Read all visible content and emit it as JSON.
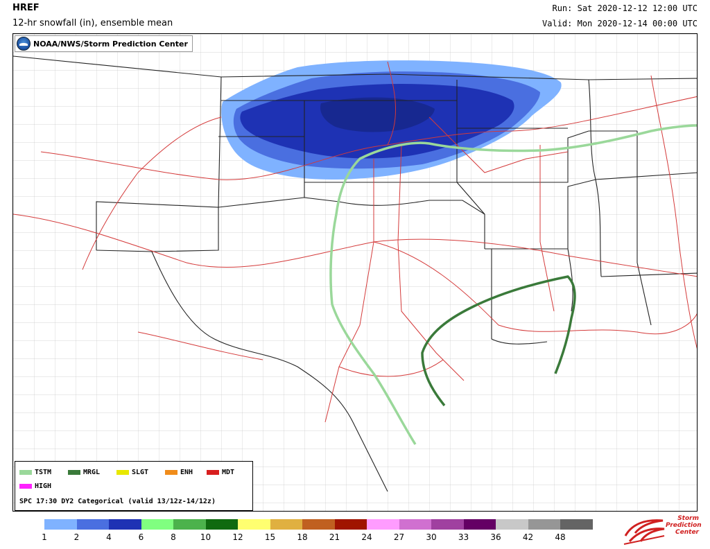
{
  "header": {
    "title": "HREF",
    "subtitle": "12-hr snowfall (in), ensemble mean",
    "run": "Run: Sat 2020-12-12 12:00 UTC",
    "valid": "Valid: Mon 2020-12-14 00:00 UTC"
  },
  "map": {
    "agency_label": "NOAA/NWS/Storm Prediction Center",
    "legend": {
      "items": [
        {
          "label": "TSTM",
          "color": "#9ad89a"
        },
        {
          "label": "MRGL",
          "color": "#3a7a3a"
        },
        {
          "label": "SLGT",
          "color": "#e8e800"
        },
        {
          "label": "ENH",
          "color": "#f08c1a"
        },
        {
          "label": "MDT",
          "color": "#d81e1e"
        },
        {
          "label": "HIGH",
          "color": "#ff22ff"
        }
      ],
      "note": "SPC 17:30 DY2 Categorical (valid 13/12z-14/12z)"
    }
  },
  "colorbar": {
    "ticks": [
      "1",
      "2",
      "4",
      "6",
      "8",
      "10",
      "12",
      "15",
      "18",
      "21",
      "24",
      "27",
      "30",
      "33",
      "36",
      "42",
      "48"
    ],
    "colors": [
      "#7fb2ff",
      "#4a6fe0",
      "#1e32b4",
      "#80ff80",
      "#4cb24c",
      "#0f6a0f",
      "#ffff70",
      "#e0b040",
      "#c06020",
      "#a01400",
      "#ff9cff",
      "#d070d0",
      "#a040a0",
      "#640064",
      "#c8c8c8",
      "#969696",
      "#646464"
    ]
  },
  "spc_logo": {
    "line1": "Storm",
    "line2": "Prediction",
    "line3": "Center"
  }
}
